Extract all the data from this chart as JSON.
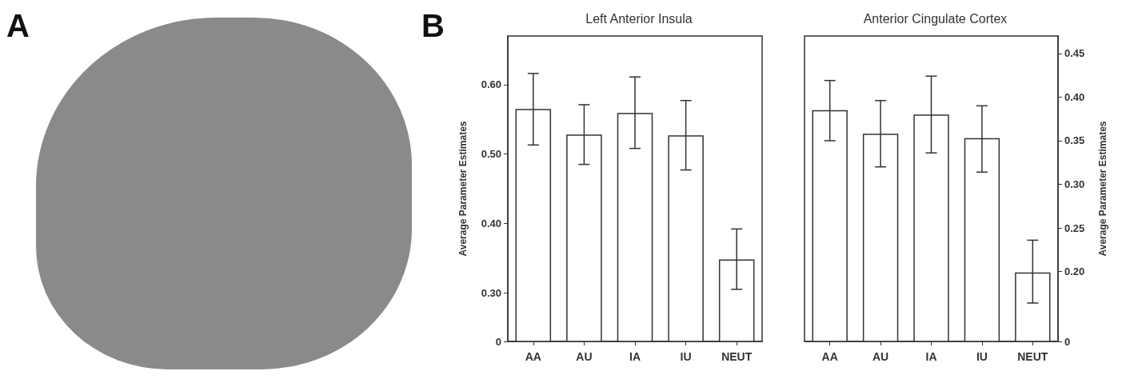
{
  "chart_data": [
    {
      "type": "bar",
      "title": "Left Anterior Insula",
      "ylabel": "Average Parameter Estimates",
      "categories": [
        "AA",
        "AU",
        "IA",
        "IU",
        "NEUT"
      ],
      "series": [
        {
          "color": "#ffffff",
          "values": [
            0.565,
            0.528,
            0.559,
            0.527,
            0.348
          ],
          "errors": [
            [
              0.513,
              0.616
            ],
            [
              0.485,
              0.571
            ],
            [
              0.508,
              0.611
            ],
            [
              0.477,
              0.577
            ],
            [
              0.305,
              0.392
            ]
          ]
        }
      ],
      "ylim": [
        0.23,
        0.67
      ],
      "yticks": [
        {
          "value": 0.23,
          "label": "0"
        },
        {
          "value": 0.3,
          "label": "0.30"
        },
        {
          "value": 0.4,
          "label": "0.40"
        },
        {
          "value": 0.5,
          "label": "0.50"
        },
        {
          "value": 0.6,
          "label": "0.60"
        }
      ],
      "grid": false,
      "annotations": [
        "A",
        "B"
      ]
    },
    {
      "type": "bar",
      "title": "Anterior Cingulate Cortex",
      "y2label": "Average Parameter Estimates",
      "categories": [
        "AA",
        "AU",
        "IA",
        "IU",
        "NEUT"
      ],
      "series": [
        {
          "color": "#ffffff",
          "axis": "y2",
          "values": [
            0.385,
            0.358,
            0.38,
            0.353,
            0.199
          ],
          "errors": [
            [
              0.35,
              0.419
            ],
            [
              0.32,
              0.396
            ],
            [
              0.336,
              0.424
            ],
            [
              0.314,
              0.39
            ],
            [
              0.164,
              0.236
            ]
          ]
        }
      ],
      "y2lim": [
        0.12,
        0.47
      ],
      "y2ticks": [
        {
          "value": 0.12,
          "label": "0"
        },
        {
          "value": 0.2,
          "label": "0.20"
        },
        {
          "value": 0.25,
          "label": "0.25"
        },
        {
          "value": 0.3,
          "label": "0.30"
        },
        {
          "value": 0.35,
          "label": "0.35"
        },
        {
          "value": 0.4,
          "label": "0.40"
        },
        {
          "value": 0.45,
          "label": "0.45"
        }
      ],
      "grid": false
    }
  ]
}
